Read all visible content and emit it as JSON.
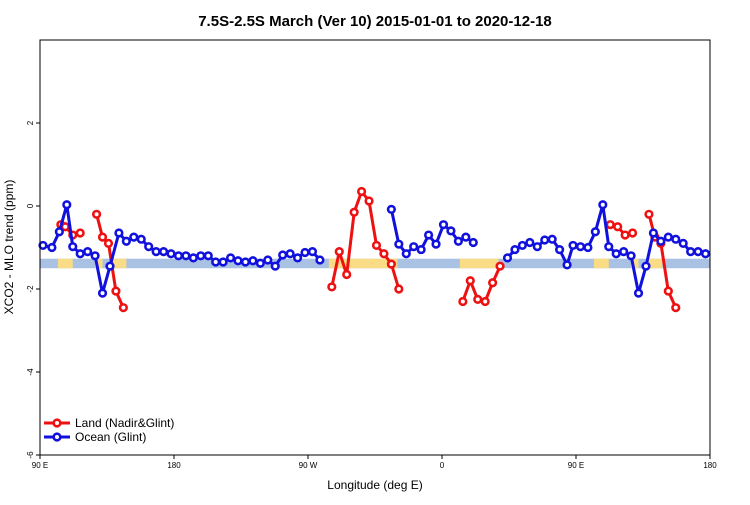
{
  "chart_data": {
    "type": "line",
    "title": "7.5S-2.5S March (Ver 10)   2015-01-01 to 2020-12-18",
    "xlabel": "Longitude (deg E)",
    "ylabel": "XCO2 - MLO trend (ppm)",
    "xlim": [
      90,
      540
    ],
    "ylim": [
      -6,
      4
    ],
    "x_ticks": [
      {
        "value": 90,
        "label": "90 E"
      },
      {
        "value": 180,
        "label": "180"
      },
      {
        "value": 270,
        "label": "90 W"
      },
      {
        "value": 360,
        "label": "0"
      },
      {
        "value": 450,
        "label": "90 E"
      },
      {
        "value": 540,
        "label": "180"
      }
    ],
    "y_ticks": [
      {
        "value": 2,
        "label": "2"
      },
      {
        "value": 0,
        "label": "0"
      },
      {
        "value": -2,
        "label": "-2"
      },
      {
        "value": -4,
        "label": "-4"
      },
      {
        "value": -6,
        "label": "-6"
      }
    ],
    "grid": false,
    "legend_position": "bottom-left",
    "colors": {
      "land": "#ee1111",
      "ocean": "#1111dd",
      "band_ocean": "#a9c1e3",
      "band_land": "#fbdc86"
    },
    "series": [
      {
        "name": "Land (Nadir&Glint)",
        "color": "#ee1111",
        "segments": [
          [
            [
              104,
              -0.45
            ],
            [
              107,
              -0.5
            ],
            [
              112,
              -0.7
            ],
            [
              117,
              -0.65
            ]
          ],
          [
            [
              128,
              -0.2
            ],
            [
              132,
              -0.75
            ],
            [
              136,
              -0.9
            ],
            [
              141,
              -2.05
            ],
            [
              146,
              -2.45
            ]
          ],
          [
            [
              286,
              -1.95
            ],
            [
              291,
              -1.1
            ],
            [
              296,
              -1.65
            ],
            [
              301,
              -0.15
            ],
            [
              306,
              0.35
            ],
            [
              311,
              0.12
            ],
            [
              316,
              -0.95
            ],
            [
              321,
              -1.15
            ],
            [
              326,
              -1.4
            ],
            [
              331,
              -2.0
            ]
          ],
          [
            [
              374,
              -2.3
            ],
            [
              379,
              -1.8
            ],
            [
              384,
              -2.25
            ],
            [
              389,
              -2.3
            ],
            [
              394,
              -1.85
            ],
            [
              399,
              -1.45
            ]
          ],
          [
            [
              473,
              -0.45
            ],
            [
              478,
              -0.5
            ],
            [
              483,
              -0.7
            ],
            [
              488,
              -0.65
            ]
          ],
          [
            [
              499,
              -0.2
            ],
            [
              503,
              -0.75
            ],
            [
              507,
              -0.9
            ],
            [
              512,
              -2.05
            ],
            [
              517,
              -2.45
            ]
          ]
        ]
      },
      {
        "name": "Ocean (Glint)",
        "color": "#1111dd",
        "segments": [
          [
            [
              92,
              -0.95
            ],
            [
              98,
              -1.0
            ],
            [
              103,
              -0.62
            ],
            [
              108,
              0.03
            ],
            [
              112,
              -0.98
            ],
            [
              117,
              -1.15
            ],
            [
              122,
              -1.1
            ],
            [
              127,
              -1.2
            ],
            [
              132,
              -2.1
            ],
            [
              137,
              -1.45
            ],
            [
              143,
              -0.65
            ],
            [
              148,
              -0.85
            ],
            [
              153,
              -0.75
            ],
            [
              158,
              -0.8
            ],
            [
              163,
              -0.98
            ],
            [
              168,
              -1.1
            ],
            [
              173,
              -1.1
            ],
            [
              178,
              -1.15
            ],
            [
              183,
              -1.2
            ],
            [
              188,
              -1.2
            ],
            [
              193,
              -1.25
            ],
            [
              198,
              -1.2
            ],
            [
              203,
              -1.2
            ],
            [
              208,
              -1.35
            ],
            [
              213,
              -1.35
            ],
            [
              218,
              -1.25
            ],
            [
              223,
              -1.32
            ],
            [
              228,
              -1.35
            ],
            [
              233,
              -1.32
            ],
            [
              238,
              -1.38
            ],
            [
              243,
              -1.3
            ],
            [
              248,
              -1.45
            ],
            [
              253,
              -1.18
            ],
            [
              258,
              -1.15
            ],
            [
              263,
              -1.25
            ],
            [
              268,
              -1.12
            ],
            [
              273,
              -1.1
            ],
            [
              278,
              -1.3
            ]
          ],
          [
            [
              326,
              -0.08
            ],
            [
              331,
              -0.92
            ],
            [
              336,
              -1.15
            ],
            [
              341,
              -0.98
            ],
            [
              346,
              -1.05
            ],
            [
              351,
              -0.7
            ],
            [
              356,
              -0.92
            ],
            [
              361,
              -0.45
            ],
            [
              366,
              -0.6
            ],
            [
              371,
              -0.85
            ],
            [
              376,
              -0.75
            ],
            [
              381,
              -0.88
            ]
          ],
          [
            [
              404,
              -1.25
            ],
            [
              409,
              -1.05
            ],
            [
              414,
              -0.95
            ],
            [
              419,
              -0.88
            ],
            [
              424,
              -0.98
            ],
            [
              429,
              -0.82
            ],
            [
              434,
              -0.8
            ],
            [
              439,
              -1.05
            ],
            [
              444,
              -1.42
            ],
            [
              448,
              -0.95
            ],
            [
              453,
              -0.98
            ],
            [
              458,
              -1.0
            ],
            [
              463,
              -0.62
            ],
            [
              468,
              0.03
            ],
            [
              472,
              -0.98
            ],
            [
              477,
              -1.15
            ],
            [
              482,
              -1.1
            ],
            [
              487,
              -1.2
            ],
            [
              492,
              -2.1
            ],
            [
              497,
              -1.45
            ],
            [
              502,
              -0.65
            ],
            [
              507,
              -0.85
            ],
            [
              512,
              -0.75
            ],
            [
              517,
              -0.8
            ],
            [
              522,
              -0.9
            ],
            [
              527,
              -1.1
            ],
            [
              532,
              -1.1
            ],
            [
              537,
              -1.15
            ]
          ]
        ]
      }
    ],
    "reference_band": {
      "y_range": [
        -1.5,
        -1.27
      ],
      "land_x_ranges": [
        [
          102,
          112
        ],
        [
          127,
          132
        ],
        [
          138,
          148
        ],
        [
          284,
          330
        ],
        [
          372,
          398
        ],
        [
          462,
          472
        ],
        [
          487,
          492
        ],
        [
          498,
          508
        ]
      ]
    }
  }
}
